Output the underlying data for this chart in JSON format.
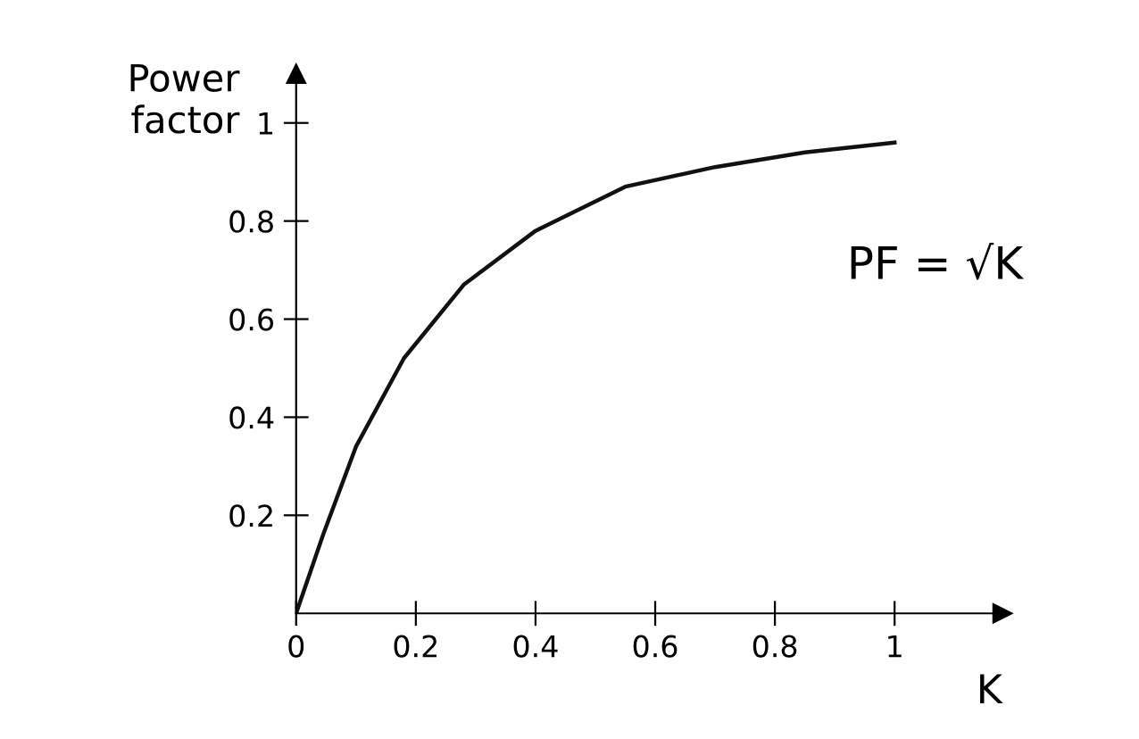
{
  "chart_data": {
    "type": "line",
    "xlabel": "K",
    "ylabel": "Power\nfactor",
    "x": [
      0,
      0.045,
      0.1,
      0.18,
      0.28,
      0.4,
      0.55,
      0.7,
      0.85,
      1.0
    ],
    "series": [
      {
        "color": "#111111",
        "values": [
          0,
          0.16,
          0.34,
          0.52,
          0.67,
          0.78,
          0.87,
          0.91,
          0.94,
          0.96
        ]
      }
    ],
    "xlim": [
      0,
      1.18
    ],
    "ylim": [
      0,
      1.1
    ],
    "xticks": [
      0,
      0.2,
      0.4,
      0.6,
      0.8,
      1
    ],
    "yticks": [
      0.2,
      0.4,
      0.6,
      0.8,
      1
    ],
    "annotations": [
      "PF = √K"
    ],
    "grid": false,
    "legend": false,
    "marker": "none",
    "line_style": "solid"
  }
}
